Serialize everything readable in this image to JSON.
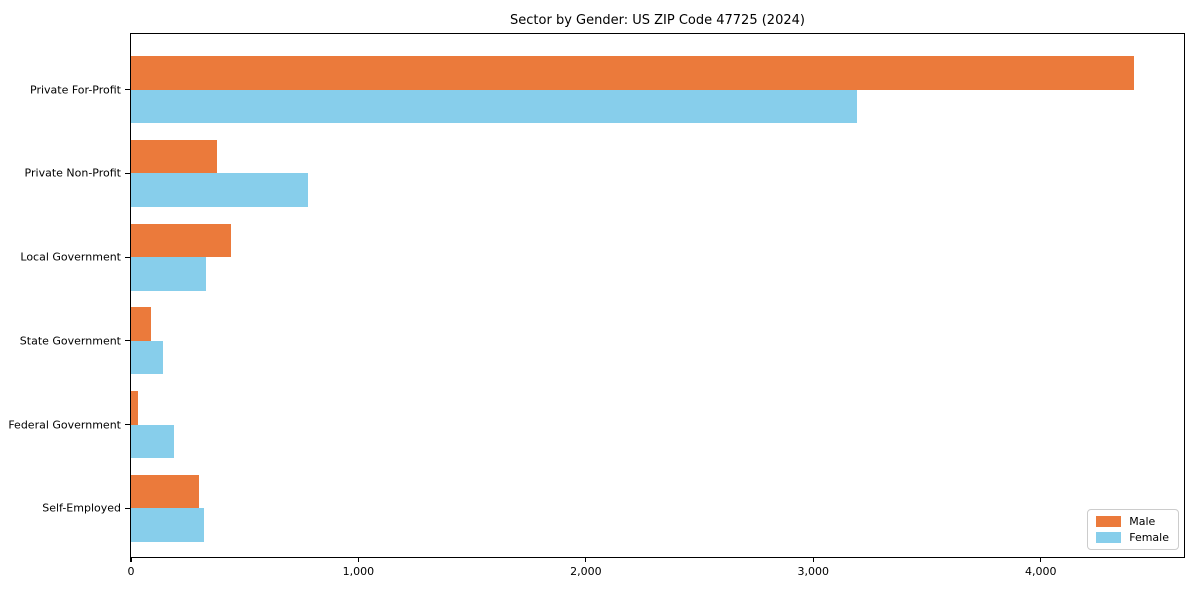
{
  "chart_data": {
    "type": "bar",
    "orientation": "horizontal",
    "title": "Sector by Gender: US ZIP Code 47725 (2024)",
    "categories": [
      "Private For-Profit",
      "Private Non-Profit",
      "Local Government",
      "State Government",
      "Federal Government",
      "Self-Employed"
    ],
    "series": [
      {
        "name": "Male",
        "color": "#EB7A3B",
        "values": [
          4410,
          380,
          440,
          90,
          30,
          300
        ]
      },
      {
        "name": "Female",
        "color": "#87CEEB",
        "values": [
          3190,
          780,
          330,
          140,
          190,
          320
        ]
      }
    ],
    "xlim": [
      0,
      4630
    ],
    "x_ticks": [
      0,
      1000,
      2000,
      3000,
      4000
    ],
    "x_tick_labels": [
      "0",
      "1,000",
      "2,000",
      "3,000",
      "4,000"
    ],
    "xlabel": "",
    "ylabel": "",
    "grid": false,
    "legend_position": "lower right",
    "background_color": "#ffffff",
    "axis_color": "#000000"
  }
}
